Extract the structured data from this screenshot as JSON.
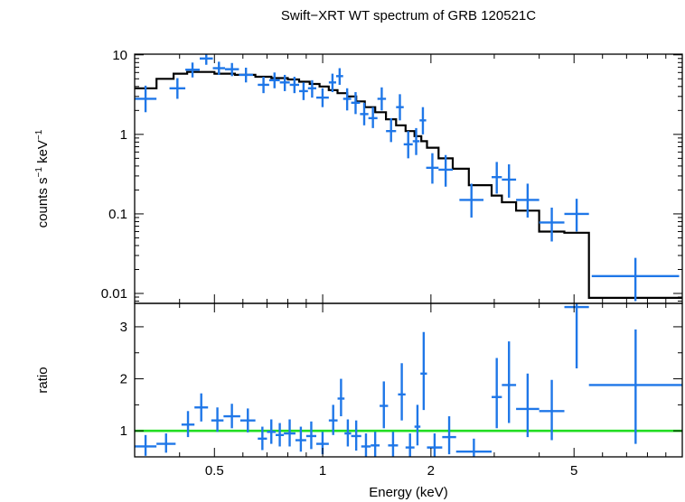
{
  "chart_data": {
    "title": "Swift−XRT WT spectrum of GRB 120521C",
    "xlabel": "Energy (keV)",
    "x_scale": "log",
    "xlim": [
      0.3,
      10
    ],
    "x_ticks": [
      {
        "v": 0.5,
        "label": "0.5"
      },
      {
        "v": 1,
        "label": "1"
      },
      {
        "v": 2,
        "label": "2"
      },
      {
        "v": 5,
        "label": "5"
      }
    ],
    "top_panel": {
      "type": "scatter",
      "ylabel_parts": {
        "a": "counts s",
        "b": "−1",
        "c": " keV",
        "d": "−1"
      },
      "y_scale": "log",
      "ylim": [
        0.0075,
        10.2
      ],
      "y_ticks": [
        {
          "v": 10,
          "label": "10"
        },
        {
          "v": 1,
          "label": "1"
        },
        {
          "v": 0.1,
          "label": "0.1"
        },
        {
          "v": 0.01,
          "label": "0.01"
        }
      ],
      "data_color": "#1f77e8",
      "model_color": "#000000",
      "data": [
        {
          "x0": 0.3,
          "x1": 0.345,
          "y": 2.8,
          "ylo": 1.9,
          "yhi": 4.1
        },
        {
          "x0": 0.375,
          "x1": 0.415,
          "y": 3.8,
          "ylo": 2.8,
          "yhi": 5.1
        },
        {
          "x0": 0.415,
          "x1": 0.455,
          "y": 6.5,
          "ylo": 5.2,
          "yhi": 8.0
        },
        {
          "x0": 0.455,
          "x1": 0.495,
          "y": 9.0,
          "ylo": 7.5,
          "yhi": 10.5
        },
        {
          "x0": 0.495,
          "x1": 0.535,
          "y": 6.8,
          "ylo": 5.6,
          "yhi": 8.2
        },
        {
          "x0": 0.535,
          "x1": 0.585,
          "y": 6.6,
          "ylo": 5.4,
          "yhi": 7.9
        },
        {
          "x0": 0.585,
          "x1": 0.64,
          "y": 5.6,
          "ylo": 4.5,
          "yhi": 6.9
        },
        {
          "x0": 0.66,
          "x1": 0.71,
          "y": 4.2,
          "ylo": 3.3,
          "yhi": 5.3
        },
        {
          "x0": 0.71,
          "x1": 0.76,
          "y": 4.8,
          "ylo": 3.8,
          "yhi": 6.0
        },
        {
          "x0": 0.76,
          "x1": 0.81,
          "y": 4.5,
          "ylo": 3.5,
          "yhi": 5.6
        },
        {
          "x0": 0.81,
          "x1": 0.86,
          "y": 4.2,
          "ylo": 3.3,
          "yhi": 5.3
        },
        {
          "x0": 0.86,
          "x1": 0.91,
          "y": 3.5,
          "ylo": 2.7,
          "yhi": 4.5
        },
        {
          "x0": 0.91,
          "x1": 0.96,
          "y": 3.8,
          "ylo": 2.9,
          "yhi": 4.8
        },
        {
          "x0": 0.96,
          "x1": 1.04,
          "y": 2.9,
          "ylo": 2.2,
          "yhi": 3.8
        },
        {
          "x0": 1.04,
          "x1": 1.09,
          "y": 4.5,
          "ylo": 3.4,
          "yhi": 5.8
        },
        {
          "x0": 1.09,
          "x1": 1.14,
          "y": 5.4,
          "ylo": 4.2,
          "yhi": 6.8
        },
        {
          "x0": 1.14,
          "x1": 1.2,
          "y": 2.8,
          "ylo": 2.0,
          "yhi": 3.8
        },
        {
          "x0": 1.2,
          "x1": 1.27,
          "y": 2.5,
          "ylo": 1.8,
          "yhi": 3.4
        },
        {
          "x0": 1.27,
          "x1": 1.34,
          "y": 1.8,
          "ylo": 1.3,
          "yhi": 2.5
        },
        {
          "x0": 1.34,
          "x1": 1.42,
          "y": 1.6,
          "ylo": 1.2,
          "yhi": 2.2
        },
        {
          "x0": 1.42,
          "x1": 1.5,
          "y": 2.8,
          "ylo": 2.0,
          "yhi": 3.9
        },
        {
          "x0": 1.5,
          "x1": 1.6,
          "y": 1.1,
          "ylo": 0.8,
          "yhi": 1.6
        },
        {
          "x0": 1.6,
          "x1": 1.68,
          "y": 2.2,
          "ylo": 1.5,
          "yhi": 3.2
        },
        {
          "x0": 1.68,
          "x1": 1.78,
          "y": 0.75,
          "ylo": 0.5,
          "yhi": 1.1
        },
        {
          "x0": 1.78,
          "x1": 1.86,
          "y": 0.82,
          "ylo": 0.55,
          "yhi": 1.2
        },
        {
          "x0": 1.86,
          "x1": 1.94,
          "y": 1.5,
          "ylo": 1.0,
          "yhi": 2.2
        },
        {
          "x0": 1.94,
          "x1": 2.1,
          "y": 0.38,
          "ylo": 0.24,
          "yhi": 0.58
        },
        {
          "x0": 2.1,
          "x1": 2.3,
          "y": 0.36,
          "ylo": 0.22,
          "yhi": 0.55
        },
        {
          "x0": 2.4,
          "x1": 2.8,
          "y": 0.15,
          "ylo": 0.09,
          "yhi": 0.24
        },
        {
          "x0": 2.95,
          "x1": 3.15,
          "y": 0.29,
          "ylo": 0.18,
          "yhi": 0.45
        },
        {
          "x0": 3.15,
          "x1": 3.45,
          "y": 0.27,
          "ylo": 0.16,
          "yhi": 0.42
        },
        {
          "x0": 3.45,
          "x1": 4.0,
          "y": 0.15,
          "ylo": 0.09,
          "yhi": 0.24
        },
        {
          "x0": 4.0,
          "x1": 4.7,
          "y": 0.078,
          "ylo": 0.045,
          "yhi": 0.12
        },
        {
          "x0": 4.7,
          "x1": 5.5,
          "y": 0.1,
          "ylo": 0.06,
          "yhi": 0.155
        },
        {
          "x0": 5.6,
          "x1": 9.8,
          "y": 0.0165,
          "ylo": 0.008,
          "yhi": 0.028
        }
      ],
      "model": [
        {
          "x": 0.3,
          "y": 3.8
        },
        {
          "x": 0.345,
          "y": 3.8
        },
        {
          "x": 0.345,
          "y": 5.0
        },
        {
          "x": 0.385,
          "y": 5.0
        },
        {
          "x": 0.385,
          "y": 5.8
        },
        {
          "x": 0.42,
          "y": 5.8
        },
        {
          "x": 0.42,
          "y": 6.1
        },
        {
          "x": 0.5,
          "y": 6.1
        },
        {
          "x": 0.5,
          "y": 5.8
        },
        {
          "x": 0.57,
          "y": 5.8
        },
        {
          "x": 0.57,
          "y": 5.6
        },
        {
          "x": 0.65,
          "y": 5.6
        },
        {
          "x": 0.65,
          "y": 5.3
        },
        {
          "x": 0.72,
          "y": 5.3
        },
        {
          "x": 0.72,
          "y": 5.1
        },
        {
          "x": 0.8,
          "y": 5.1
        },
        {
          "x": 0.8,
          "y": 4.9
        },
        {
          "x": 0.86,
          "y": 4.9
        },
        {
          "x": 0.86,
          "y": 4.6
        },
        {
          "x": 0.92,
          "y": 4.6
        },
        {
          "x": 0.92,
          "y": 4.3
        },
        {
          "x": 0.98,
          "y": 4.3
        },
        {
          "x": 0.98,
          "y": 4.0
        },
        {
          "x": 1.04,
          "y": 4.0
        },
        {
          "x": 1.04,
          "y": 3.6
        },
        {
          "x": 1.1,
          "y": 3.6
        },
        {
          "x": 1.1,
          "y": 3.3
        },
        {
          "x": 1.17,
          "y": 3.3
        },
        {
          "x": 1.17,
          "y": 3.0
        },
        {
          "x": 1.24,
          "y": 3.0
        },
        {
          "x": 1.24,
          "y": 2.6
        },
        {
          "x": 1.31,
          "y": 2.6
        },
        {
          "x": 1.31,
          "y": 2.2
        },
        {
          "x": 1.4,
          "y": 2.2
        },
        {
          "x": 1.4,
          "y": 1.9
        },
        {
          "x": 1.5,
          "y": 1.9
        },
        {
          "x": 1.5,
          "y": 1.55
        },
        {
          "x": 1.6,
          "y": 1.55
        },
        {
          "x": 1.6,
          "y": 1.3
        },
        {
          "x": 1.7,
          "y": 1.3
        },
        {
          "x": 1.7,
          "y": 1.1
        },
        {
          "x": 1.8,
          "y": 1.1
        },
        {
          "x": 1.8,
          "y": 0.95
        },
        {
          "x": 1.88,
          "y": 0.95
        },
        {
          "x": 1.88,
          "y": 0.82
        },
        {
          "x": 1.95,
          "y": 0.82
        },
        {
          "x": 1.95,
          "y": 0.68
        },
        {
          "x": 2.1,
          "y": 0.68
        },
        {
          "x": 2.1,
          "y": 0.5
        },
        {
          "x": 2.3,
          "y": 0.5
        },
        {
          "x": 2.3,
          "y": 0.37
        },
        {
          "x": 2.55,
          "y": 0.37
        },
        {
          "x": 2.55,
          "y": 0.23
        },
        {
          "x": 2.95,
          "y": 0.23
        },
        {
          "x": 2.95,
          "y": 0.17
        },
        {
          "x": 3.15,
          "y": 0.17
        },
        {
          "x": 3.15,
          "y": 0.14
        },
        {
          "x": 3.45,
          "y": 0.14
        },
        {
          "x": 3.45,
          "y": 0.11
        },
        {
          "x": 4.0,
          "y": 0.11
        },
        {
          "x": 4.0,
          "y": 0.06
        },
        {
          "x": 4.7,
          "y": 0.06
        },
        {
          "x": 4.7,
          "y": 0.058
        },
        {
          "x": 5.5,
          "y": 0.058
        },
        {
          "x": 5.5,
          "y": 0.0088
        },
        {
          "x": 10,
          "y": 0.0088
        }
      ]
    },
    "bottom_panel": {
      "type": "scatter",
      "ylabel": "ratio",
      "y_scale": "linear",
      "ylim": [
        0.5,
        3.45
      ],
      "y_ticks": [
        {
          "v": 1,
          "label": "1"
        },
        {
          "v": 2,
          "label": "2"
        },
        {
          "v": 3,
          "label": "3"
        }
      ],
      "reference_line": {
        "y": 1,
        "color": "#22dd22"
      },
      "data_color": "#1f77e8",
      "data": [
        {
          "x0": 0.3,
          "x1": 0.345,
          "y": 0.7,
          "ylo": 0.52,
          "yhi": 0.92
        },
        {
          "x0": 0.345,
          "x1": 0.39,
          "y": 0.75,
          "ylo": 0.58,
          "yhi": 0.95
        },
        {
          "x0": 0.405,
          "x1": 0.44,
          "y": 1.12,
          "ylo": 0.88,
          "yhi": 1.38
        },
        {
          "x0": 0.44,
          "x1": 0.48,
          "y": 1.45,
          "ylo": 1.18,
          "yhi": 1.72
        },
        {
          "x0": 0.49,
          "x1": 0.53,
          "y": 1.2,
          "ylo": 0.98,
          "yhi": 1.45
        },
        {
          "x0": 0.53,
          "x1": 0.59,
          "y": 1.28,
          "ylo": 1.05,
          "yhi": 1.52
        },
        {
          "x0": 0.59,
          "x1": 0.65,
          "y": 1.2,
          "ylo": 0.97,
          "yhi": 1.43
        },
        {
          "x0": 0.66,
          "x1": 0.7,
          "y": 0.85,
          "ylo": 0.63,
          "yhi": 1.08
        },
        {
          "x0": 0.7,
          "x1": 0.74,
          "y": 0.98,
          "ylo": 0.75,
          "yhi": 1.22
        },
        {
          "x0": 0.74,
          "x1": 0.78,
          "y": 0.92,
          "ylo": 0.7,
          "yhi": 1.15
        },
        {
          "x0": 0.78,
          "x1": 0.84,
          "y": 0.95,
          "ylo": 0.7,
          "yhi": 1.22
        },
        {
          "x0": 0.84,
          "x1": 0.9,
          "y": 0.82,
          "ylo": 0.6,
          "yhi": 1.08
        },
        {
          "x0": 0.9,
          "x1": 0.96,
          "y": 0.9,
          "ylo": 0.65,
          "yhi": 1.18
        },
        {
          "x0": 0.96,
          "x1": 1.04,
          "y": 0.75,
          "ylo": 0.55,
          "yhi": 0.98
        },
        {
          "x0": 1.04,
          "x1": 1.1,
          "y": 1.2,
          "ylo": 0.92,
          "yhi": 1.5
        },
        {
          "x0": 1.1,
          "x1": 1.15,
          "y": 1.62,
          "ylo": 1.28,
          "yhi": 2.0
        },
        {
          "x0": 1.15,
          "x1": 1.2,
          "y": 0.95,
          "ylo": 0.7,
          "yhi": 1.22
        },
        {
          "x0": 1.2,
          "x1": 1.28,
          "y": 0.9,
          "ylo": 0.62,
          "yhi": 1.2
        },
        {
          "x0": 1.28,
          "x1": 1.36,
          "y": 0.7,
          "ylo": 0.48,
          "yhi": 0.95
        },
        {
          "x0": 1.36,
          "x1": 1.44,
          "y": 0.72,
          "ylo": 0.5,
          "yhi": 0.98
        },
        {
          "x0": 1.44,
          "x1": 1.52,
          "y": 1.48,
          "ylo": 1.05,
          "yhi": 1.95
        },
        {
          "x0": 1.52,
          "x1": 1.62,
          "y": 0.72,
          "ylo": 0.5,
          "yhi": 0.98
        },
        {
          "x0": 1.62,
          "x1": 1.7,
          "y": 1.7,
          "ylo": 1.2,
          "yhi": 2.3
        },
        {
          "x0": 1.7,
          "x1": 1.8,
          "y": 0.68,
          "ylo": 0.46,
          "yhi": 0.95
        },
        {
          "x0": 1.8,
          "x1": 1.87,
          "y": 1.08,
          "ylo": 0.72,
          "yhi": 1.5
        },
        {
          "x0": 1.87,
          "x1": 1.95,
          "y": 2.1,
          "ylo": 1.4,
          "yhi": 2.9
        },
        {
          "x0": 1.95,
          "x1": 2.15,
          "y": 0.68,
          "ylo": 0.45,
          "yhi": 0.95
        },
        {
          "x0": 2.15,
          "x1": 2.35,
          "y": 0.88,
          "ylo": 0.55,
          "yhi": 1.28
        },
        {
          "x0": 2.35,
          "x1": 2.95,
          "y": 0.6,
          "ylo": 0.4,
          "yhi": 0.85
        },
        {
          "x0": 2.95,
          "x1": 3.15,
          "y": 1.65,
          "ylo": 1.05,
          "yhi": 2.4
        },
        {
          "x0": 3.15,
          "x1": 3.45,
          "y": 1.88,
          "ylo": 1.15,
          "yhi": 2.72
        },
        {
          "x0": 3.45,
          "x1": 4.0,
          "y": 1.42,
          "ylo": 0.88,
          "yhi": 2.1
        },
        {
          "x0": 4.0,
          "x1": 4.7,
          "y": 1.38,
          "ylo": 0.82,
          "yhi": 1.98
        },
        {
          "x0": 4.7,
          "x1": 5.5,
          "y": 3.38,
          "ylo": 2.2,
          "yhi": 4.0
        },
        {
          "x0": 5.5,
          "x1": 10,
          "y": 1.88,
          "ylo": 0.75,
          "yhi": 2.95
        }
      ]
    }
  }
}
